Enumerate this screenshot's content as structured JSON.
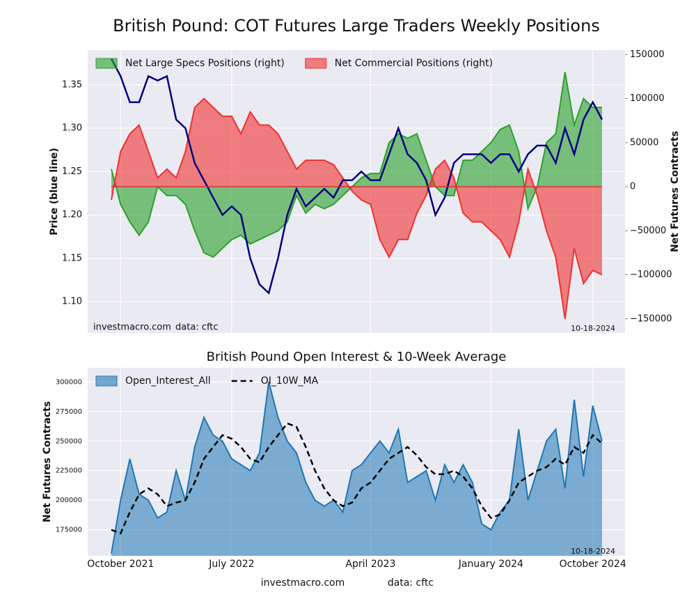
{
  "title": "British Pound: COT Futures Large Traders Weekly Positions",
  "footer": {
    "site": "investmacro.com",
    "source": "data: cftc"
  },
  "chart_data": [
    {
      "type": "combo",
      "ylabel": "Price (blue line)",
      "y2label": "Net Futures Contracts",
      "annotations": {
        "site": "investmacro.com",
        "source": "data: cftc",
        "date": "10-18-2024"
      },
      "ylim": [
        1.064,
        1.39
      ],
      "yticks": [
        {
          "value": 1.1,
          "label": "1.10"
        },
        1.15,
        {
          "value": 1.2,
          "label": "1.20"
        },
        1.25,
        {
          "value": 1.3,
          "label": "1.30"
        },
        1.35
      ],
      "y2lim": [
        -166000,
        155000
      ],
      "y2ticks": [
        {
          "value": -150000,
          "label": "−150000"
        },
        {
          "value": -100000,
          "label": "−100000"
        },
        {
          "value": -50000,
          "label": "−50000"
        },
        0,
        50000,
        100000,
        150000
      ],
      "grid": true,
      "legend": "upper left",
      "series": [
        {
          "type": "area",
          "name": "Net Large Specs Positions (right)",
          "color": "#2ca02c",
          "axis": "y2",
          "values": [
            20000,
            -20000,
            -40000,
            -55000,
            -40000,
            0,
            -10000,
            -10000,
            -20000,
            -50000,
            -75000,
            -80000,
            -70000,
            -60000,
            -55000,
            -65000,
            -60000,
            -55000,
            -50000,
            -40000,
            -10000,
            -30000,
            -20000,
            -25000,
            -20000,
            -10000,
            0,
            10000,
            15000,
            15000,
            50000,
            60000,
            55000,
            60000,
            30000,
            0,
            -10000,
            -10000,
            30000,
            30000,
            40000,
            50000,
            65000,
            70000,
            40000,
            -25000,
            0,
            50000,
            60000,
            130000,
            70000,
            100000,
            90000,
            90000
          ]
        },
        {
          "type": "area",
          "name": "Net Commercial Positions (right)",
          "color": "#f03030",
          "axis": "y2",
          "values": [
            -15000,
            40000,
            60000,
            70000,
            40000,
            10000,
            20000,
            10000,
            40000,
            90000,
            100000,
            90000,
            80000,
            80000,
            60000,
            85000,
            70000,
            70000,
            60000,
            40000,
            20000,
            30000,
            30000,
            30000,
            25000,
            10000,
            -5000,
            -15000,
            -20000,
            -60000,
            -80000,
            -60000,
            -60000,
            -30000,
            -10000,
            20000,
            30000,
            10000,
            -30000,
            -40000,
            -40000,
            -50000,
            -60000,
            -80000,
            -40000,
            20000,
            -10000,
            -50000,
            -80000,
            -150000,
            -70000,
            -110000,
            -95000,
            -100000
          ]
        },
        {
          "type": "line",
          "color": "#000080",
          "axis": "y",
          "values": [
            1.38,
            1.36,
            1.33,
            1.33,
            1.36,
            1.355,
            1.36,
            1.31,
            1.3,
            1.26,
            1.24,
            1.22,
            1.2,
            1.21,
            1.2,
            1.15,
            1.12,
            1.11,
            1.15,
            1.2,
            1.23,
            1.21,
            1.22,
            1.23,
            1.22,
            1.24,
            1.24,
            1.25,
            1.24,
            1.24,
            1.27,
            1.3,
            1.27,
            1.26,
            1.24,
            1.2,
            1.22,
            1.26,
            1.27,
            1.27,
            1.27,
            1.26,
            1.27,
            1.27,
            1.25,
            1.27,
            1.28,
            1.28,
            1.26,
            1.3,
            1.27,
            1.31,
            1.33,
            1.31
          ]
        }
      ]
    },
    {
      "type": "combo",
      "title": "British Pound Open Interest & 10-Week Average",
      "ylabel": "Net Futures Contracts",
      "annotations": {
        "date": "10-18-2024"
      },
      "categories": [
        null,
        "October 2021",
        null,
        null,
        null,
        null,
        null,
        null,
        null,
        null,
        null,
        null,
        null,
        "July 2022",
        null,
        null,
        null,
        null,
        null,
        null,
        null,
        null,
        null,
        null,
        null,
        null,
        null,
        null,
        "April 2023",
        null,
        null,
        null,
        null,
        null,
        null,
        null,
        null,
        null,
        null,
        null,
        null,
        "January 2024",
        null,
        null,
        null,
        null,
        null,
        null,
        null,
        null,
        null,
        null,
        "October 2024",
        null
      ],
      "ylim": [
        153000,
        312000
      ],
      "yticks": [
        175000,
        200000,
        225000,
        250000,
        275000,
        300000
      ],
      "grid": true,
      "legend": "upper left",
      "series": [
        {
          "type": "area",
          "name": "Open_Interest_All",
          "color": "#1f77b4",
          "values": [
            155000,
            200000,
            235000,
            205000,
            200000,
            185000,
            190000,
            225000,
            200000,
            245000,
            270000,
            255000,
            250000,
            235000,
            230000,
            225000,
            240000,
            300000,
            270000,
            250000,
            240000,
            215000,
            200000,
            195000,
            200000,
            190000,
            225000,
            230000,
            240000,
            250000,
            240000,
            260000,
            215000,
            220000,
            225000,
            200000,
            230000,
            215000,
            230000,
            215000,
            180000,
            175000,
            190000,
            200000,
            260000,
            200000,
            225000,
            250000,
            260000,
            210000,
            285000,
            220000,
            280000,
            250000
          ]
        },
        {
          "type": "line",
          "name": "OI_10W_MA",
          "color": "#000000",
          "linestyle": "dashed",
          "values": [
            175000,
            172000,
            190000,
            205000,
            210000,
            205000,
            195000,
            198000,
            200000,
            215000,
            235000,
            245000,
            255000,
            252000,
            245000,
            235000,
            232000,
            245000,
            255000,
            265000,
            262000,
            245000,
            225000,
            210000,
            200000,
            195000,
            198000,
            210000,
            215000,
            225000,
            235000,
            240000,
            245000,
            238000,
            228000,
            222000,
            222000,
            225000,
            220000,
            210000,
            195000,
            185000,
            188000,
            200000,
            215000,
            220000,
            225000,
            228000,
            235000,
            230000,
            245000,
            240000,
            255000,
            248000
          ]
        }
      ]
    }
  ]
}
